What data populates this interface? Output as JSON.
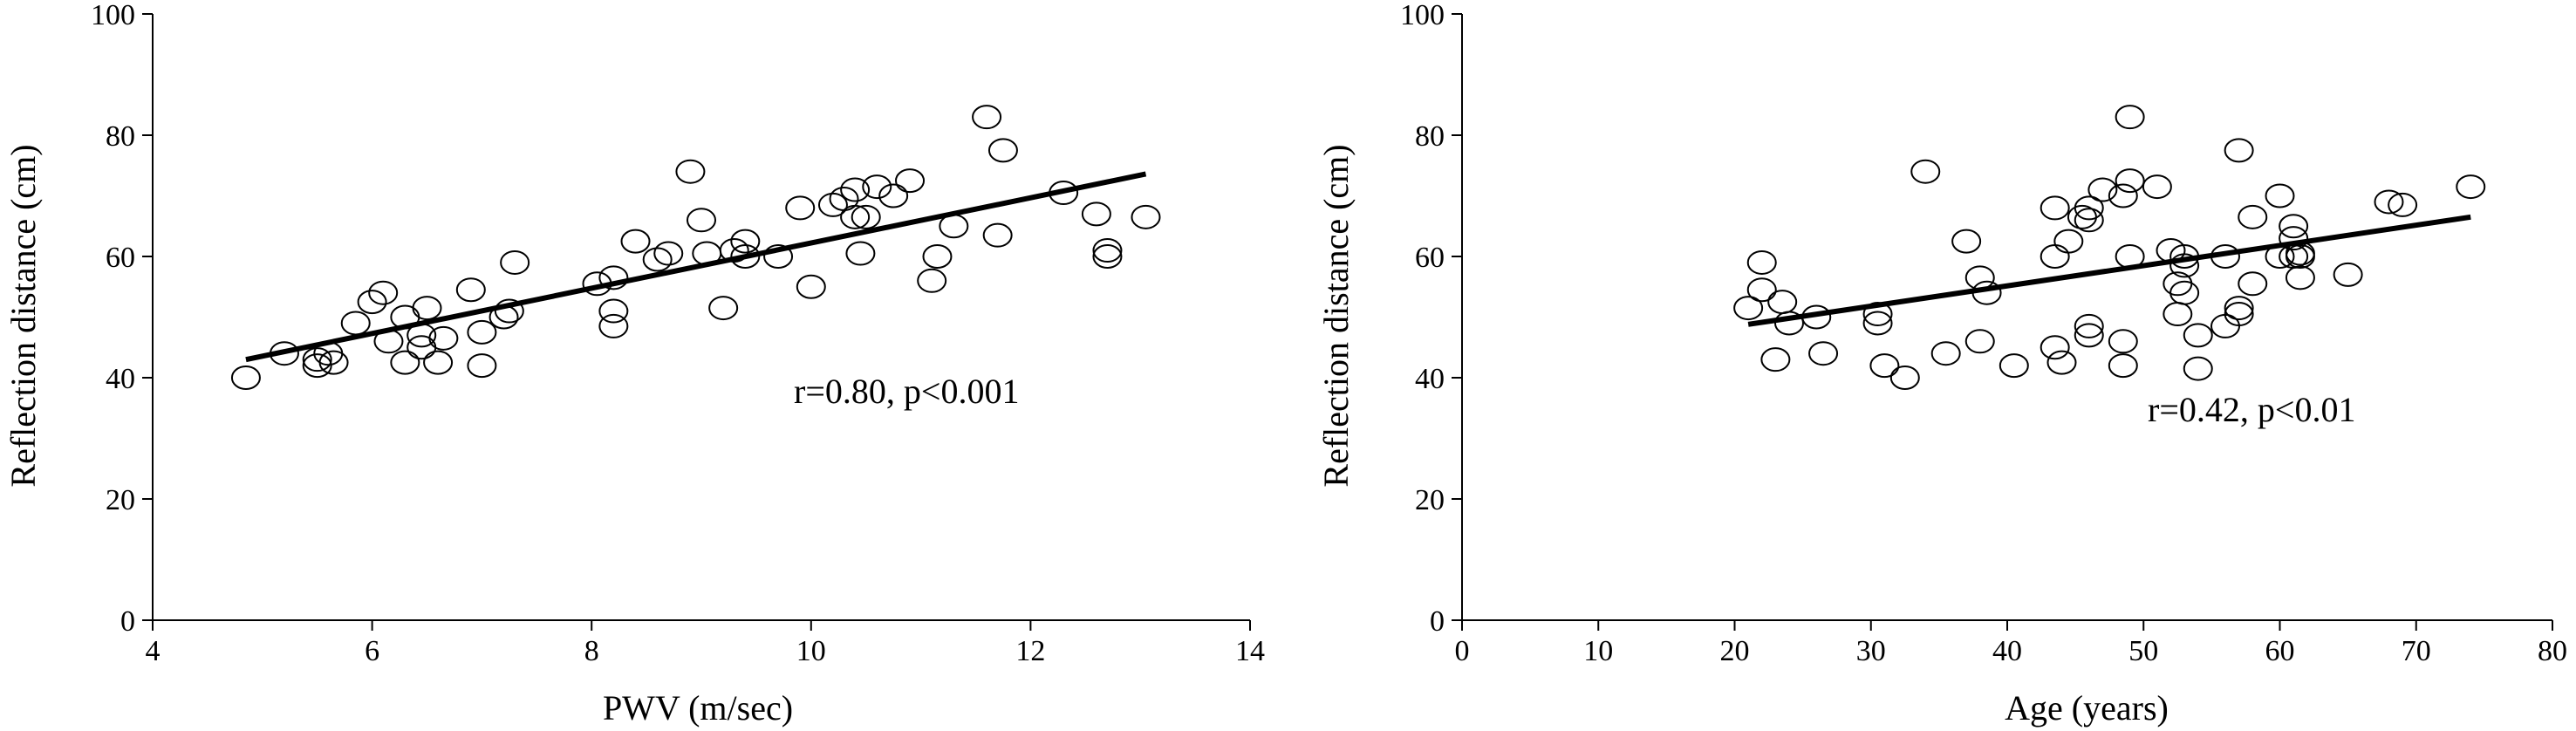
{
  "chart_data": [
    {
      "type": "scatter",
      "xlabel": "PWV (m/sec)",
      "ylabel": "Reflection distance (cm)",
      "xlim": [
        4,
        14
      ],
      "ylim": [
        0,
        100
      ],
      "xticks": [
        4,
        6,
        8,
        10,
        12,
        14
      ],
      "yticks": [
        0,
        20,
        40,
        60,
        80,
        100
      ],
      "grid": false,
      "annotation": "r=0.80, p<0.001",
      "regression_line": {
        "x": [
          4.85,
          13.05
        ],
        "y": [
          43,
          73.6
        ]
      },
      "series": [
        {
          "points": [
            [
              4.85,
              40
            ],
            [
              5.2,
              44
            ],
            [
              5.5,
              43
            ],
            [
              5.5,
              42
            ],
            [
              5.6,
              44
            ],
            [
              5.65,
              42.5
            ],
            [
              5.85,
              49
            ],
            [
              6.0,
              52.5
            ],
            [
              6.1,
              54
            ],
            [
              6.15,
              46
            ],
            [
              6.3,
              42.5
            ],
            [
              6.3,
              50
            ],
            [
              6.45,
              45
            ],
            [
              6.45,
              47
            ],
            [
              6.5,
              51.5
            ],
            [
              6.6,
              42.5
            ],
            [
              6.65,
              46.5
            ],
            [
              6.9,
              54.5
            ],
            [
              7.0,
              42
            ],
            [
              7.0,
              47.5
            ],
            [
              7.2,
              50
            ],
            [
              7.25,
              51
            ],
            [
              7.3,
              59
            ],
            [
              8.05,
              55.5
            ],
            [
              8.2,
              48.5
            ],
            [
              8.2,
              51
            ],
            [
              8.2,
              56.5
            ],
            [
              8.4,
              62.5
            ],
            [
              8.6,
              59.5
            ],
            [
              8.7,
              60.5
            ],
            [
              8.9,
              74
            ],
            [
              9.0,
              66
            ],
            [
              9.05,
              60.5
            ],
            [
              9.2,
              51.5
            ],
            [
              9.3,
              61
            ],
            [
              9.4,
              62.5
            ],
            [
              9.4,
              60
            ],
            [
              9.7,
              60
            ],
            [
              9.9,
              68
            ],
            [
              10.0,
              55
            ],
            [
              10.2,
              68.5
            ],
            [
              10.3,
              69.5
            ],
            [
              10.4,
              71
            ],
            [
              10.4,
              66.5
            ],
            [
              10.45,
              60.5
            ],
            [
              10.5,
              66.5
            ],
            [
              10.6,
              71.5
            ],
            [
              10.75,
              70
            ],
            [
              10.9,
              72.5
            ],
            [
              11.1,
              56
            ],
            [
              11.15,
              60
            ],
            [
              11.3,
              65
            ],
            [
              11.6,
              83
            ],
            [
              11.7,
              63.5
            ],
            [
              11.75,
              77.5
            ],
            [
              12.3,
              70.5
            ],
            [
              12.6,
              67
            ],
            [
              12.7,
              60
            ],
            [
              12.7,
              61
            ],
            [
              13.05,
              66.5
            ]
          ]
        }
      ]
    },
    {
      "type": "scatter",
      "xlabel": "Age (years)",
      "ylabel": "Reflection distance (cm)",
      "xlim": [
        0,
        80
      ],
      "ylim": [
        0,
        100
      ],
      "xticks": [
        0,
        10,
        20,
        30,
        40,
        50,
        60,
        70,
        80
      ],
      "yticks": [
        0,
        20,
        40,
        60,
        80,
        100
      ],
      "grid": false,
      "annotation": "r=0.42, p<0.01",
      "regression_line": {
        "x": [
          21,
          74
        ],
        "y": [
          48.8,
          66.5
        ]
      },
      "series": [
        {
          "points": [
            [
              21,
              51.5
            ],
            [
              22,
              59
            ],
            [
              22,
              54.5
            ],
            [
              23,
              43
            ],
            [
              23.5,
              52.5
            ],
            [
              24,
              49
            ],
            [
              26,
              50
            ],
            [
              26.5,
              44
            ],
            [
              30.5,
              50.5
            ],
            [
              30.5,
              49
            ],
            [
              31,
              42
            ],
            [
              32.5,
              40
            ],
            [
              34,
              74
            ],
            [
              35.5,
              44
            ],
            [
              37,
              62.5
            ],
            [
              38,
              56.5
            ],
            [
              38,
              46
            ],
            [
              38.5,
              54
            ],
            [
              40.5,
              42
            ],
            [
              43.5,
              60
            ],
            [
              43.5,
              45
            ],
            [
              43.5,
              68
            ],
            [
              44,
              42.5
            ],
            [
              44.5,
              62.5
            ],
            [
              45.5,
              66.5
            ],
            [
              46,
              68
            ],
            [
              46,
              66
            ],
            [
              46,
              48.5
            ],
            [
              46,
              47
            ],
            [
              47,
              71
            ],
            [
              48.5,
              70
            ],
            [
              48.5,
              46
            ],
            [
              48.5,
              42
            ],
            [
              49,
              83
            ],
            [
              49,
              72.5
            ],
            [
              49,
              60
            ],
            [
              51,
              71.5
            ],
            [
              52,
              61
            ],
            [
              52.5,
              55.5
            ],
            [
              52.5,
              50.5
            ],
            [
              53,
              60
            ],
            [
              53,
              58.5
            ],
            [
              53,
              54
            ],
            [
              54,
              47
            ],
            [
              54,
              41.5
            ],
            [
              56,
              60
            ],
            [
              56,
              48.5
            ],
            [
              57,
              77.5
            ],
            [
              57,
              51.5
            ],
            [
              57,
              50.5
            ],
            [
              58,
              66.5
            ],
            [
              58,
              55.5
            ],
            [
              60,
              70
            ],
            [
              60,
              60
            ],
            [
              61,
              65
            ],
            [
              61,
              63
            ],
            [
              61,
              60
            ],
            [
              61.5,
              60.5
            ],
            [
              61.5,
              60
            ],
            [
              61.5,
              56.5
            ],
            [
              65,
              57
            ],
            [
              68,
              69
            ],
            [
              69,
              68.5
            ],
            [
              74,
              71.5
            ]
          ]
        }
      ]
    }
  ]
}
